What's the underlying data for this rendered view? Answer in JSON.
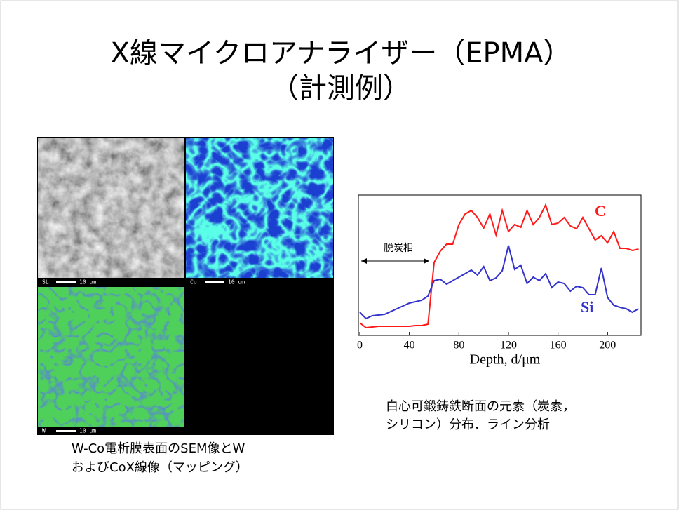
{
  "title_lines": [
    "X線マイクロアナライザー（EPMA）",
    "（計測例）"
  ],
  "left_figure": {
    "panel_labels": [
      "SL",
      "Co",
      "W"
    ],
    "scale_bar": "10 um",
    "caption": [
      "W-Co電析膜表面のSEM像とW",
      "およびCoX線像（マッピング）"
    ]
  },
  "right_caption": [
    "白心可鍛鋳鉄断面の元素（炭素，",
    "シリコン）分布．ライン分析"
  ],
  "chart_data": {
    "type": "line",
    "xlabel": "Depth, d/μm",
    "annotation": "脱炭相",
    "x": [
      0,
      5,
      10,
      15,
      20,
      25,
      30,
      35,
      40,
      45,
      50,
      55,
      60,
      65,
      70,
      75,
      80,
      85,
      90,
      95,
      100,
      105,
      110,
      115,
      120,
      125,
      130,
      135,
      140,
      145,
      150,
      155,
      160,
      165,
      170,
      175,
      180,
      185,
      190,
      195,
      200,
      205,
      210,
      215,
      220,
      225
    ],
    "series": [
      {
        "name": "C",
        "color": "#ff1a1a",
        "values": [
          9,
          5.5,
          6,
          6.5,
          6.5,
          6.5,
          6.5,
          6.5,
          6.5,
          7,
          7,
          8,
          52,
          60,
          65,
          65,
          79,
          86.5,
          89,
          84,
          76.5,
          86.5,
          71.5,
          89,
          74,
          79,
          77,
          89,
          79,
          84,
          93,
          79,
          80,
          84,
          78,
          76,
          84,
          76,
          68,
          71,
          66,
          74,
          62,
          62,
          60.5,
          61.5
        ]
      },
      {
        "name": "Si",
        "color": "#3333cc",
        "values": [
          16.5,
          12,
          14,
          14.5,
          15,
          17,
          19,
          21,
          23,
          24,
          25,
          28,
          39,
          40,
          36.5,
          39,
          41.5,
          44,
          46.5,
          43,
          49,
          39,
          41,
          46,
          64,
          47,
          50,
          37,
          41.5,
          39,
          44,
          34,
          38,
          37,
          31.5,
          35,
          34,
          29,
          29,
          48,
          27,
          21.5,
          20,
          19,
          16.5,
          19
        ]
      }
    ],
    "xlim": [
      0,
      227
    ],
    "xticks": [
      0,
      40,
      80,
      120,
      160,
      200
    ],
    "ylim": [
      0,
      100
    ]
  }
}
